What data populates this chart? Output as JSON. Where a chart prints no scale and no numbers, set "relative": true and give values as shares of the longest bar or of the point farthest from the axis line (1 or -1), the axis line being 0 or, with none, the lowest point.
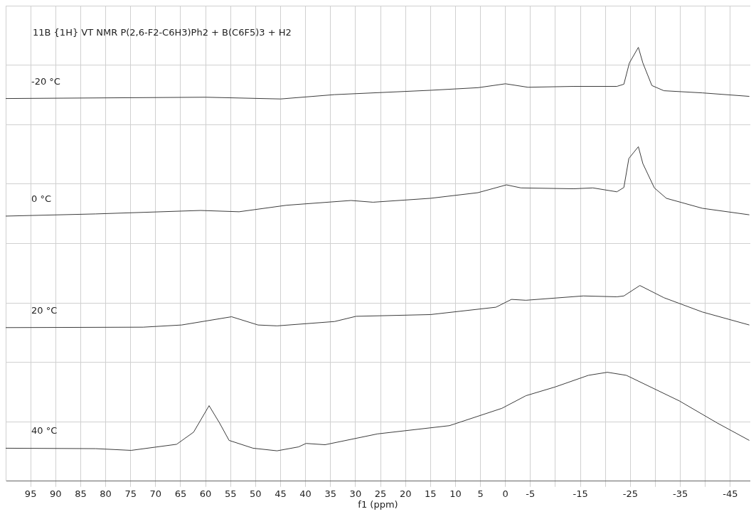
{
  "chart_data": {
    "type": "line",
    "title": "11B {1H} VT NMR P(2,6-F2-C6H3)Ph2 + B(C6F5)3 + H2",
    "xlabel": "f1 (ppm)",
    "relative": true,
    "xlim": [
      100,
      -49
    ],
    "xticks": [
      95,
      90,
      85,
      80,
      75,
      70,
      65,
      60,
      55,
      50,
      45,
      40,
      35,
      30,
      25,
      20,
      15,
      10,
      5,
      0,
      -5,
      {
        "value": -10,
        "label": null
      },
      -15,
      {
        "value": -20,
        "label": null
      },
      -25,
      {
        "value": -30,
        "label": null
      },
      -35,
      {
        "value": -40,
        "label": null
      },
      -45
    ],
    "grid": true,
    "legend": false,
    "marker": "none",
    "line_style": "solid",
    "series": [
      {
        "name": "-20 °C",
        "color": "#3c3c3c",
        "x": [
          100,
          60,
          45,
          34.2,
          15,
          5.5,
          0,
          -4.5,
          -13.7,
          -22.3,
          -23.7,
          -24.8,
          -26.6,
          -27.5,
          -29.3,
          -31.7,
          -39.4,
          -48.8
        ],
        "values": [
          0.882,
          0.885,
          0.881,
          0.891,
          0.901,
          0.907,
          0.916,
          0.908,
          0.91,
          0.91,
          0.915,
          0.964,
          1,
          0.964,
          0.912,
          0.9,
          0.895,
          0.887
        ]
      },
      {
        "name": "0 °C",
        "color": "#3c3c3c",
        "x": [
          100,
          82,
          61,
          53.3,
          43.8,
          30.9,
          26.5,
          15,
          5.5,
          -0.2,
          -3.1,
          -13.7,
          -17.5,
          -22.3,
          -23.7,
          -24.7,
          -26.6,
          -27.5,
          -29.8,
          -32.2,
          -39.4,
          -48.8
        ],
        "values": [
          0.611,
          0.616,
          0.624,
          0.621,
          0.636,
          0.647,
          0.643,
          0.652,
          0.665,
          0.683,
          0.676,
          0.674,
          0.676,
          0.667,
          0.677,
          0.744,
          0.771,
          0.732,
          0.676,
          0.652,
          0.629,
          0.614
        ]
      },
      {
        "name": "20 °C",
        "color": "#3c3c3c",
        "x": [
          100,
          72.5,
          64.8,
          54.8,
          49.5,
          45.7,
          34.2,
          29.9,
          15,
          1.9,
          -1.2,
          -4.1,
          -15.6,
          -22.3,
          -23.7,
          -26.9,
          -31.7,
          -39.4,
          -48.8
        ],
        "values": [
          0.354,
          0.355,
          0.36,
          0.379,
          0.36,
          0.358,
          0.368,
          0.38,
          0.384,
          0.401,
          0.419,
          0.417,
          0.427,
          0.425,
          0.427,
          0.451,
          0.423,
          0.39,
          0.36
        ]
      },
      {
        "name": "40 °C",
        "color": "#3c3c3c",
        "x": [
          100,
          82,
          74.9,
          65.8,
          62.4,
          59.3,
          57.2,
          55.3,
          50.5,
          45.7,
          41.4,
          39.9,
          36.1,
          25.6,
          11.2,
          0.7,
          -4.1,
          -9.9,
          -16.6,
          -20.4,
          -24.2,
          -34.8,
          -42.4,
          -48.8
        ],
        "values": [
          0.076,
          0.075,
          0.071,
          0.085,
          0.113,
          0.174,
          0.134,
          0.094,
          0.076,
          0.07,
          0.079,
          0.087,
          0.084,
          0.109,
          0.128,
          0.168,
          0.197,
          0.217,
          0.244,
          0.251,
          0.244,
          0.185,
          0.134,
          0.094
        ]
      }
    ]
  }
}
